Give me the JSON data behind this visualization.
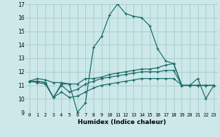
{
  "xlabel": "Humidex (Indice chaleur)",
  "bg_color": "#cce8e8",
  "grid_color": "#aacccc",
  "line_color": "#1a6b6b",
  "xlim": [
    -0.5,
    23.5
  ],
  "ylim": [
    9,
    17
  ],
  "xticks": [
    0,
    1,
    2,
    3,
    4,
    5,
    6,
    7,
    8,
    9,
    10,
    11,
    12,
    13,
    14,
    15,
    16,
    17,
    18,
    19,
    20,
    21,
    22,
    23
  ],
  "yticks": [
    9,
    10,
    11,
    12,
    13,
    14,
    15,
    16,
    17
  ],
  "series": [
    [
      11.3,
      11.5,
      11.4,
      11.2,
      11.2,
      11.1,
      9.0,
      9.7,
      13.8,
      14.6,
      16.2,
      17.0,
      16.3,
      16.1,
      16.0,
      15.4,
      13.7,
      12.8,
      12.6,
      11.0,
      11.0,
      11.5,
      10.0,
      11.0
    ],
    [
      11.3,
      11.3,
      11.2,
      10.1,
      11.1,
      11.1,
      11.1,
      11.5,
      11.5,
      11.6,
      11.8,
      11.9,
      12.0,
      12.1,
      12.2,
      12.2,
      12.3,
      12.5,
      12.6,
      11.0,
      11.0,
      11.0,
      11.0,
      11.0
    ],
    [
      11.3,
      11.3,
      11.2,
      10.1,
      11.0,
      10.5,
      10.7,
      11.1,
      11.3,
      11.5,
      11.6,
      11.7,
      11.8,
      11.9,
      12.0,
      12.0,
      12.0,
      12.1,
      12.1,
      11.0,
      11.0,
      11.0,
      11.0,
      11.0
    ],
    [
      11.3,
      11.2,
      11.1,
      10.1,
      10.5,
      10.1,
      10.2,
      10.5,
      10.8,
      11.0,
      11.1,
      11.2,
      11.3,
      11.4,
      11.5,
      11.5,
      11.5,
      11.5,
      11.5,
      11.0,
      11.0,
      11.0,
      11.0,
      11.0
    ]
  ]
}
